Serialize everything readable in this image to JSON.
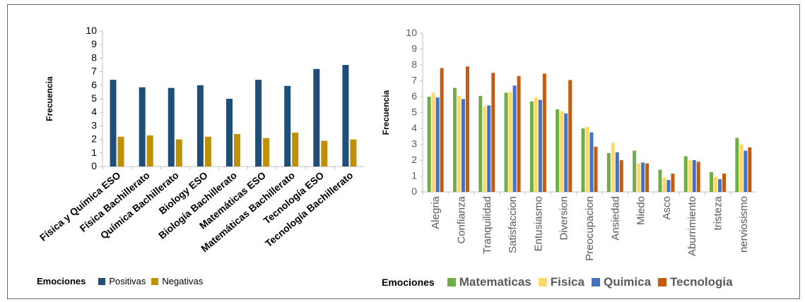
{
  "chart_data": [
    {
      "type": "bar",
      "ylabel": "Frecuencia",
      "ylim": [
        0,
        10
      ],
      "yticks": [
        0,
        1,
        2,
        3,
        4,
        5,
        6,
        7,
        8,
        9,
        10
      ],
      "categories": [
        "Física y Química ESO",
        "Física Bachillerato",
        "Química Bachillerato",
        "Biology ESO",
        "Biología Bachillerato",
        "Matemáticas ESO",
        "Matemáticas Bachillerato",
        "Tecnología ESO",
        "Tecnología Bachillerato"
      ],
      "legend_title": "Emociones",
      "series": [
        {
          "name": "Positivas",
          "color": "#1f4e79",
          "values": [
            6.4,
            5.85,
            5.8,
            6.0,
            5.0,
            6.4,
            5.95,
            7.2,
            7.5
          ]
        },
        {
          "name": "Negativas",
          "color": "#bf9000",
          "values": [
            2.2,
            2.3,
            2.0,
            2.2,
            2.4,
            2.1,
            2.5,
            1.9,
            2.0
          ]
        }
      ],
      "grid": false,
      "legend_position": "bottom"
    },
    {
      "type": "bar",
      "ylabel": "Frecuencia",
      "ylim": [
        0,
        10
      ],
      "yticks": [
        0,
        1,
        2,
        3,
        4,
        5,
        6,
        7,
        8,
        9,
        10
      ],
      "categories": [
        "Alegria",
        "Confianza",
        "Tranquilidad",
        "Satisfaccion",
        "Entusiasmo",
        "Diversion",
        "Preocupacion",
        "Ansiedad",
        "Miedo",
        "Asco",
        "Aburrimiento",
        "tristeza",
        "nerviosismo"
      ],
      "legend_title": "Emociones",
      "series": [
        {
          "name": "Matematicas",
          "color": "#70ad47",
          "values": [
            6.0,
            6.55,
            6.05,
            6.25,
            5.7,
            5.2,
            4.0,
            2.45,
            2.6,
            1.4,
            2.25,
            1.25,
            3.4
          ]
        },
        {
          "name": "Fisica",
          "color": "#ffd966",
          "values": [
            6.25,
            6.05,
            5.4,
            6.3,
            5.95,
            5.1,
            4.1,
            3.1,
            1.8,
            0.9,
            2.0,
            0.95,
            3.0
          ]
        },
        {
          "name": "Quimica",
          "color": "#4472c4",
          "values": [
            5.95,
            5.85,
            5.45,
            6.7,
            5.8,
            4.95,
            3.75,
            2.5,
            1.85,
            0.75,
            2.0,
            0.8,
            2.6
          ]
        },
        {
          "name": "Tecnologia",
          "color": "#c55a11",
          "values": [
            7.8,
            7.9,
            7.5,
            7.3,
            7.45,
            7.05,
            2.85,
            2.0,
            1.8,
            1.15,
            1.9,
            1.15,
            2.8
          ]
        }
      ],
      "grid": false,
      "legend_position": "bottom"
    }
  ]
}
